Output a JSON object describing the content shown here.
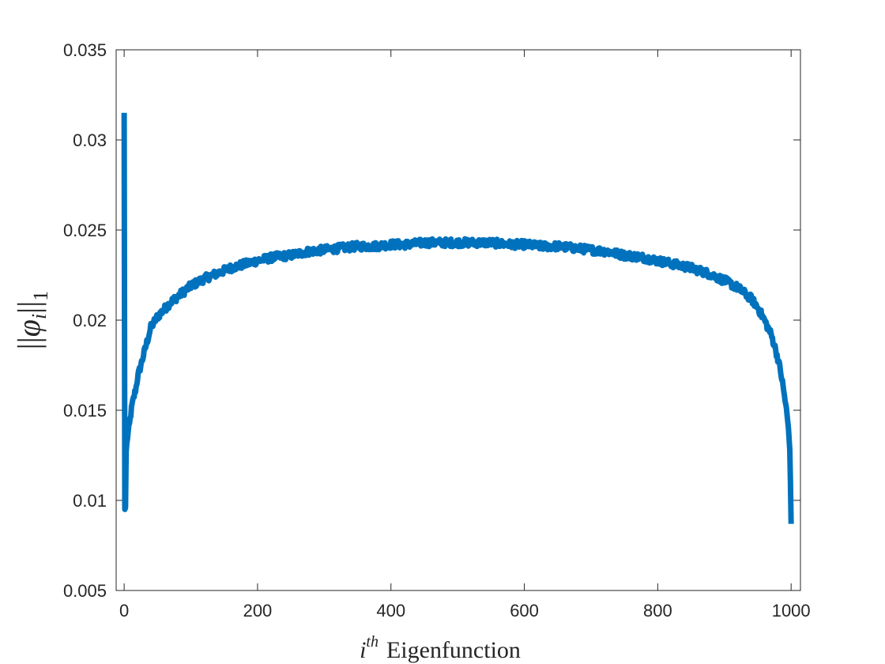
{
  "chart_data": {
    "type": "line",
    "title": "",
    "xlabel": {
      "base": "i",
      "sup": "th",
      "text": "Eigenfunction"
    },
    "ylabel": {
      "bars_left": "||",
      "symbol": "φ",
      "subscript_i": "i",
      "bars_right": "||",
      "subscript_1": "1"
    },
    "xlim": [
      -12,
      1014
    ],
    "ylim": [
      0.005,
      0.035
    ],
    "xticks": [
      0,
      200,
      400,
      600,
      800,
      1000
    ],
    "xtick_labels": [
      "0",
      "200",
      "400",
      "600",
      "800",
      "1000"
    ],
    "yticks": [
      0.005,
      0.01,
      0.015,
      0.02,
      0.025,
      0.03,
      0.035
    ],
    "ytick_labels": [
      "0.005",
      "0.01",
      "0.015",
      "0.02",
      "0.025",
      "0.03",
      "0.035"
    ],
    "grid": false,
    "series": [
      {
        "color": "#0072BD",
        "x": [
          0,
          1,
          2,
          3,
          5,
          8,
          10,
          12,
          15,
          18,
          20,
          25,
          30,
          35,
          40,
          45,
          50,
          60,
          70,
          80,
          90,
          100,
          120,
          140,
          160,
          180,
          200,
          225,
          250,
          275,
          300,
          325,
          350,
          375,
          400,
          425,
          450,
          475,
          500,
          525,
          550,
          575,
          600,
          625,
          650,
          675,
          700,
          725,
          750,
          775,
          800,
          825,
          850,
          875,
          900,
          920,
          940,
          950,
          960,
          970,
          975,
          980,
          985,
          990,
          993,
          996,
          998,
          999,
          1000
        ],
        "y": [
          0.0315,
          0.0095,
          0.0096,
          0.0127,
          0.0135,
          0.0142,
          0.0148,
          0.0153,
          0.0158,
          0.0163,
          0.0168,
          0.0175,
          0.0182,
          0.0189,
          0.0196,
          0.0199,
          0.0202,
          0.0206,
          0.021,
          0.0213,
          0.0216,
          0.0219,
          0.0223,
          0.0226,
          0.0229,
          0.0231,
          0.0233,
          0.0235,
          0.0236,
          0.0238,
          0.0239,
          0.024,
          0.0241,
          0.0241,
          0.0242,
          0.0242,
          0.0243,
          0.0243,
          0.0243,
          0.0243,
          0.0243,
          0.0242,
          0.0242,
          0.0241,
          0.0241,
          0.024,
          0.0239,
          0.0238,
          0.0236,
          0.0235,
          0.0233,
          0.0231,
          0.0229,
          0.0226,
          0.0222,
          0.0218,
          0.0212,
          0.0207,
          0.02,
          0.0192,
          0.0186,
          0.0179,
          0.017,
          0.0158,
          0.015,
          0.014,
          0.0128,
          0.011,
          0.0087
        ]
      }
    ]
  }
}
